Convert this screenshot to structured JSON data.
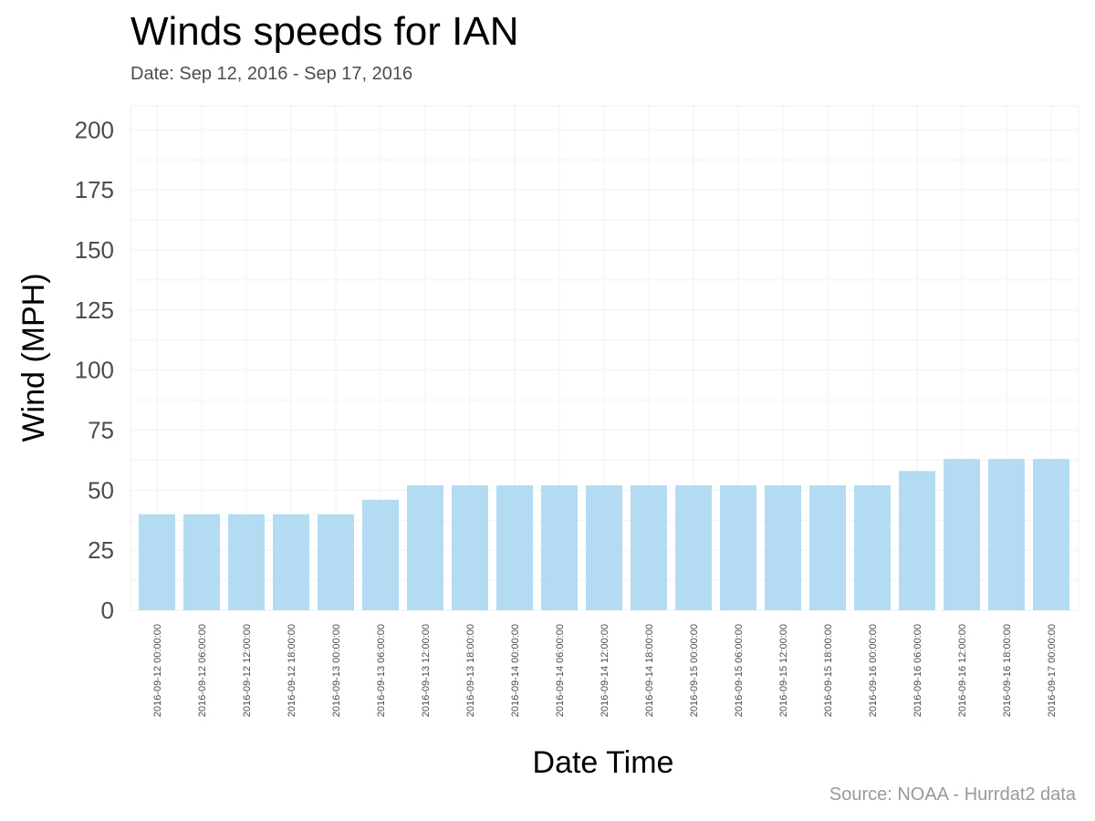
{
  "chart_data": {
    "type": "bar",
    "title": "Winds speeds for IAN",
    "subtitle": "Date:  Sep 12, 2016 - Sep 17, 2016",
    "caption": "Source: NOAA - Hurrdat2 data",
    "xlabel": "Date Time",
    "ylabel": "Wind (MPH)",
    "ylim": [
      0,
      210
    ],
    "yticks": [
      0,
      25,
      50,
      75,
      100,
      125,
      150,
      175,
      200
    ],
    "grid": true,
    "categories": [
      "2016-09-12 00:00:00",
      "2016-09-12 06:00:00",
      "2016-09-12 12:00:00",
      "2016-09-12 18:00:00",
      "2016-09-13 00:00:00",
      "2016-09-13 06:00:00",
      "2016-09-13 12:00:00",
      "2016-09-13 18:00:00",
      "2016-09-14 00:00:00",
      "2016-09-14 06:00:00",
      "2016-09-14 12:00:00",
      "2016-09-14 18:00:00",
      "2016-09-15 00:00:00",
      "2016-09-15 06:00:00",
      "2016-09-15 12:00:00",
      "2016-09-15 18:00:00",
      "2016-09-16 00:00:00",
      "2016-09-16 06:00:00",
      "2016-09-16 12:00:00",
      "2016-09-16 18:00:00",
      "2016-09-17 00:00:00"
    ],
    "values": [
      40,
      40,
      40,
      40,
      40,
      46,
      52,
      52,
      52,
      52,
      52,
      52,
      52,
      52,
      52,
      52,
      52,
      58,
      63,
      63,
      63
    ],
    "colors": {
      "bar": "#b3dcf2",
      "grid": "#f2f2f2",
      "axis_text": "#4d4d4d"
    }
  }
}
